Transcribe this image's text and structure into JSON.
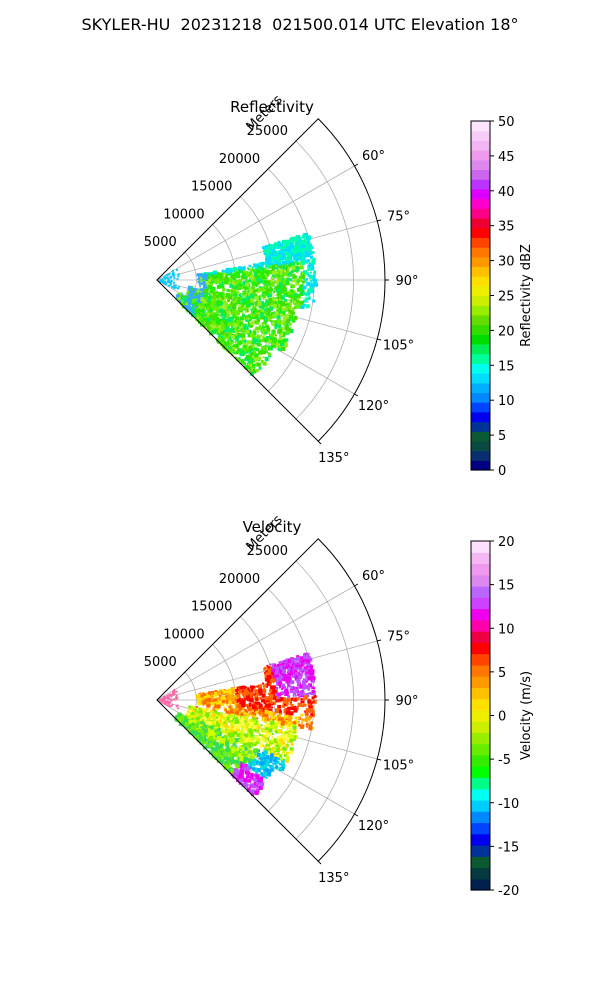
{
  "figure": {
    "title": "SKYLER-HU  20231218  021500.014 UTC Elevation 18°"
  },
  "chart_data": [
    {
      "type": "polar-sector",
      "title": "Reflectivity",
      "range_label": "Meters",
      "range_ticks": [
        5000,
        10000,
        15000,
        20000,
        25000
      ],
      "range_max_m": 29000,
      "azimuth_range_deg": [
        45,
        135
      ],
      "azimuth_ticks_deg": [
        60,
        75,
        90,
        105,
        120,
        135
      ],
      "colorbar": {
        "label": "Reflectivity dBZ",
        "min": 0,
        "max": 50,
        "ticks": [
          0,
          5,
          10,
          15,
          20,
          25,
          30,
          35,
          40,
          45,
          50
        ]
      },
      "echo_colors": [
        "#00ee66",
        "#22ee00",
        "#44dd00",
        "#66ee00",
        "#99ee22",
        "#00ffaa",
        "#00ddff",
        "#33aaff"
      ]
    },
    {
      "type": "polar-sector",
      "title": "Velocity",
      "range_label": "Meters",
      "range_ticks": [
        5000,
        10000,
        15000,
        20000,
        25000
      ],
      "range_max_m": 29000,
      "azimuth_range_deg": [
        45,
        135
      ],
      "azimuth_ticks_deg": [
        60,
        75,
        90,
        105,
        120,
        135
      ],
      "colorbar": {
        "label": "Velocity (m/s)",
        "min": -20,
        "max": 20,
        "ticks": [
          -20,
          -15,
          -10,
          -5,
          0,
          5,
          10,
          15,
          20
        ]
      },
      "echo_colors": [
        "#ff0000",
        "#ff6600",
        "#ffaa00",
        "#ffdd00",
        "#ffff44",
        "#ccff00",
        "#77ee00",
        "#33dd55",
        "#00dddd",
        "#00aaff",
        "#ee00ee",
        "#bb55ff"
      ]
    }
  ]
}
